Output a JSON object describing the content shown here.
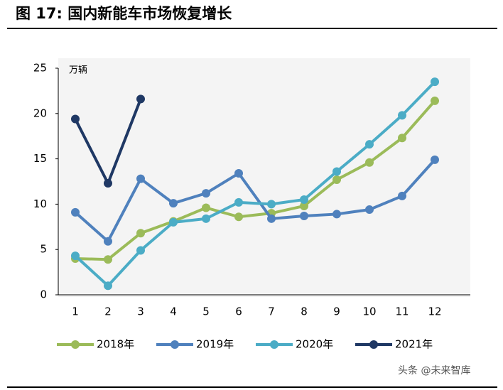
{
  "chart_data": {
    "type": "line",
    "title": "图 17:  国内新能车市场恢复增长",
    "y_unit": "万辆",
    "categories": [
      "1",
      "2",
      "3",
      "4",
      "5",
      "6",
      "7",
      "8",
      "9",
      "10",
      "11",
      "12"
    ],
    "series": [
      {
        "name": "2018年",
        "color": "#9bbb59",
        "values": [
          4.0,
          3.9,
          6.8,
          8.1,
          9.6,
          8.6,
          9.0,
          9.8,
          12.7,
          14.6,
          17.3,
          21.4
        ]
      },
      {
        "name": "2019年",
        "color": "#4f81bd",
        "values": [
          9.1,
          5.9,
          12.8,
          10.1,
          11.2,
          13.4,
          8.4,
          8.7,
          8.9,
          9.4,
          10.9,
          14.9
        ]
      },
      {
        "name": "2020年",
        "color": "#4bacc6",
        "values": [
          4.3,
          1.0,
          4.9,
          8.0,
          8.4,
          10.2,
          10.0,
          10.5,
          13.6,
          16.6,
          19.8,
          23.5
        ]
      },
      {
        "name": "2021年",
        "color": "#1f3864",
        "values": [
          19.4,
          12.3,
          21.6,
          null,
          null,
          null,
          null,
          null,
          null,
          null,
          null,
          null
        ]
      }
    ],
    "ylim": [
      0,
      25
    ],
    "yticks": [
      0,
      5,
      10,
      15,
      20,
      25
    ],
    "legend": "bottom",
    "watermark": "头条 @未来智库"
  }
}
